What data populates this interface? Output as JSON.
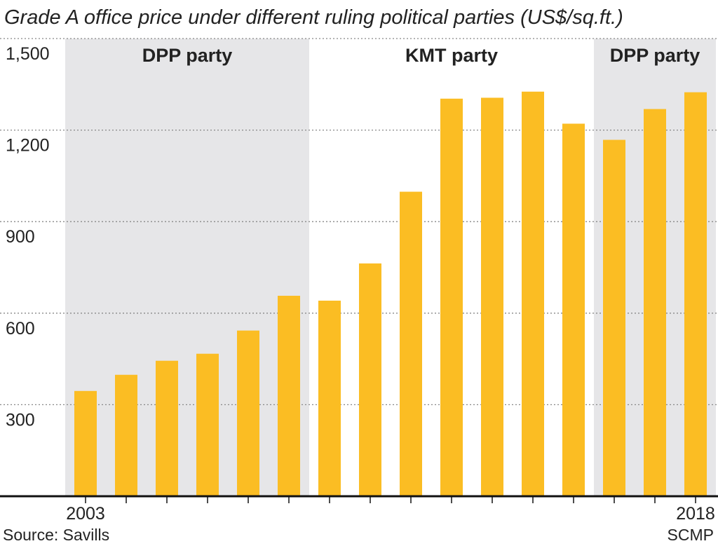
{
  "chart_data": {
    "type": "bar",
    "title": "Grade A office price under different ruling political parties (US$/sq.ft.)",
    "x": [
      2003,
      2004,
      2005,
      2006,
      2007,
      2008,
      2009,
      2010,
      2011,
      2012,
      2013,
      2014,
      2015,
      2016,
      2017,
      2018
    ],
    "values": [
      345,
      398,
      444,
      467,
      543,
      657,
      641,
      763,
      998,
      1303,
      1306,
      1326,
      1221,
      1168,
      1269,
      1324
    ],
    "color": "#fbbd23",
    "xticks": [
      {
        "value": 2003,
        "label": "2003"
      },
      {
        "value": 2018,
        "label": "2018"
      }
    ],
    "ylim": [
      0,
      1500
    ],
    "yticks": [
      300,
      600,
      900,
      {
        "value": 1200,
        "label": "1,200"
      },
      {
        "value": 1500,
        "label": "1,500"
      }
    ],
    "grid": true,
    "periods": [
      {
        "label": "DPP party",
        "from": 2003,
        "to": 2008,
        "shaded": true
      },
      {
        "label": "KMT party",
        "from": 2009,
        "to": 2015,
        "shaded": false
      },
      {
        "label": "DPP party",
        "from": 2016,
        "to": 2018,
        "shaded": true
      }
    ],
    "shade_color": "#e6e6e8",
    "source": "Source: Savills",
    "credit": "SCMP"
  }
}
